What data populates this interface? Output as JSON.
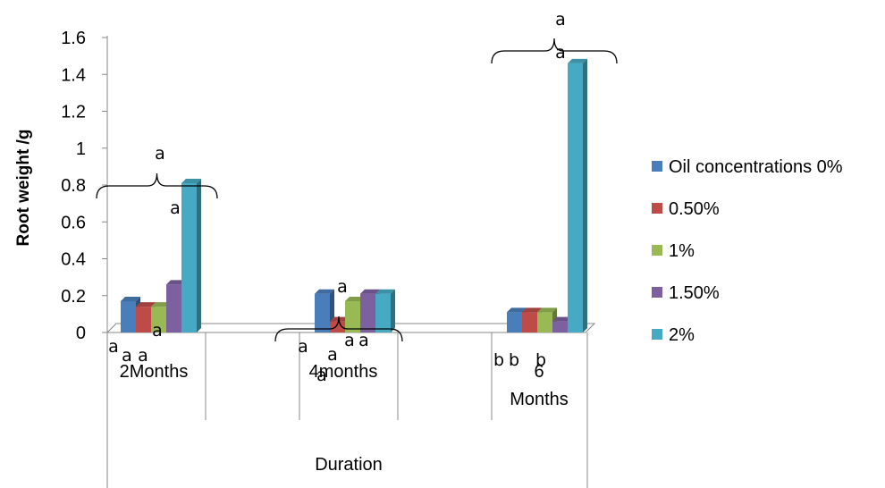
{
  "chart_data": {
    "type": "bar",
    "ylabel": "Root weight /g",
    "xlabel": "Duration",
    "ylim": [
      0,
      1.6
    ],
    "yticks": [
      "0",
      "0.2",
      "0.4",
      "0.6",
      "0.8",
      "1",
      "1.2",
      "1.4",
      "1.6"
    ],
    "categories": [
      "2Months",
      "4months",
      "6 Months"
    ],
    "series": [
      {
        "name": "Oil concentrations 0%",
        "color": "#4a7ebb",
        "values": [
          0.17,
          0.21,
          0.11
        ]
      },
      {
        "name": "0.50%",
        "color": "#be4b48",
        "values": [
          0.14,
          0.06,
          0.11
        ]
      },
      {
        "name": "1%",
        "color": "#98b954",
        "values": [
          0.14,
          0.17,
          0.11
        ]
      },
      {
        "name": "1.50%",
        "color": "#7d60a0",
        "values": [
          0.26,
          0.21,
          0.06
        ]
      },
      {
        "name": "2%",
        "color": "#46aac5",
        "values": [
          0.81,
          0.21,
          1.46
        ]
      }
    ],
    "group_brace_labels": [
      "a",
      "",
      "a"
    ],
    "bar_top_labels": [
      [
        "",
        "",
        "",
        "",
        "a"
      ],
      [
        "",
        "",
        "",
        "",
        ""
      ],
      [
        "",
        "",
        "",
        "",
        "a"
      ]
    ],
    "bottom_labels": [
      [
        "a",
        "a",
        "a",
        "a",
        ""
      ],
      [
        "a",
        "a",
        "a",
        "a",
        "a"
      ],
      [
        "b",
        "b",
        "b",
        "",
        ""
      ]
    ],
    "legend_position": "right"
  }
}
